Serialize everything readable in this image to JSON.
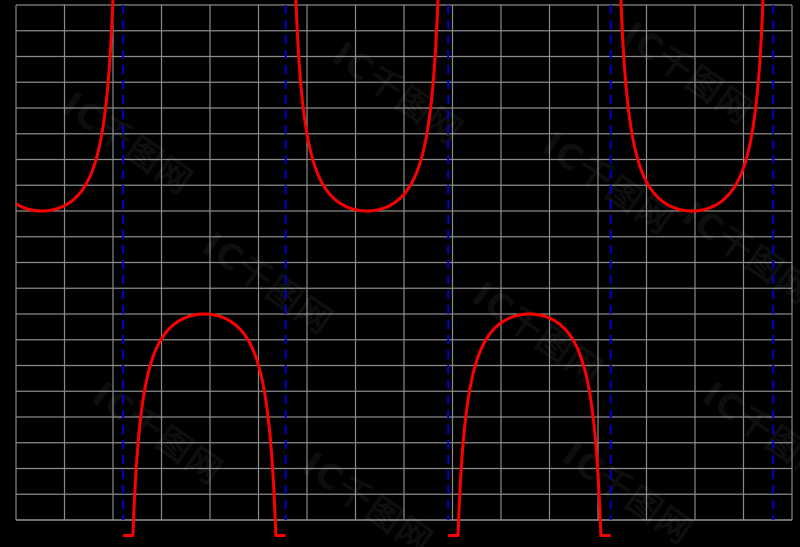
{
  "chart_data": {
    "type": "line",
    "function": "sec(x)",
    "xlim": [
      -0.5,
      14.5
    ],
    "ylim": [
      -5,
      5
    ],
    "vertical_asymptotes": [
      -1.5708,
      1.5708,
      4.7124,
      7.854,
      10.9956,
      14.1372
    ],
    "grid": true,
    "x_gridlines": [
      -0.5,
      0.4375,
      1.375,
      2.3125,
      3.25,
      4.1875,
      5.125,
      6.0625,
      7.0,
      7.9375,
      8.875,
      9.8125,
      10.75,
      11.6875,
      12.625,
      13.5625,
      14.5
    ],
    "y_gridlines": [
      -5,
      -4.5,
      -4,
      -3.5,
      -3,
      -2.5,
      -2,
      -1.5,
      -1,
      -0.5,
      0,
      0.5,
      1,
      1.5,
      2,
      2.5,
      3,
      3.5,
      4,
      4.5,
      5
    ],
    "series": [
      {
        "color": "#ff0000",
        "branches": [
          {
            "x": [
              -0.5,
              -0.1,
              0,
              0.1,
              0.5
            ],
            "y": [
              1.14,
              1.005,
              1,
              1.005,
              1.14
            ],
            "extremum": [
              0,
              1
            ]
          },
          {
            "x": [
              3.14159
            ],
            "y": [
              -1
            ],
            "extremum": [
              3.14159,
              -1
            ]
          },
          {
            "x": [
              6.28319
            ],
            "y": [
              1
            ],
            "extremum": [
              6.28319,
              1
            ]
          },
          {
            "x": [
              9.42478
            ],
            "y": [
              -1
            ],
            "extremum": [
              9.42478,
              -1
            ]
          },
          {
            "x": [
              12.56637
            ],
            "y": [
              1
            ],
            "extremum": [
              12.56637,
              1
            ]
          }
        ]
      }
    ],
    "asymptote_color": "#0000cc",
    "gridline_color": "#8a8a8a",
    "background": "#000000",
    "watermark": "IC千图网"
  }
}
